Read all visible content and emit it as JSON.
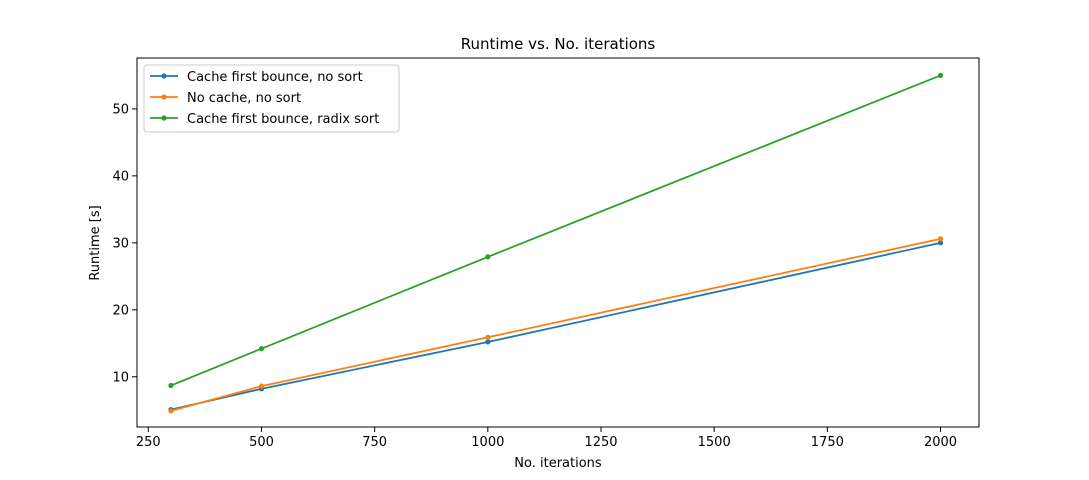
{
  "chart_data": {
    "type": "line",
    "title": "Runtime vs. No. iterations",
    "xlabel": "No. iterations",
    "ylabel": "Runtime [s]",
    "x": [
      300,
      500,
      1000,
      2000
    ],
    "xlim": [
      225,
      2085
    ],
    "ylim": [
      2.5,
      57.6
    ],
    "xticks": [
      250,
      500,
      750,
      1000,
      1250,
      1500,
      1750,
      2000
    ],
    "yticks": [
      10,
      20,
      30,
      40,
      50
    ],
    "grid": false,
    "legend_position": "top-left",
    "series": [
      {
        "name": "Cache first bounce, no sort",
        "color": "#1f77b4",
        "values": [
          5.1,
          8.2,
          15.2,
          30.0
        ]
      },
      {
        "name": "No cache, no sort",
        "color": "#ff7f0e",
        "values": [
          4.9,
          8.6,
          15.9,
          30.6
        ]
      },
      {
        "name": "Cache first bounce, radix sort",
        "color": "#2ca02c",
        "values": [
          8.7,
          14.2,
          27.9,
          55.0
        ]
      }
    ]
  }
}
